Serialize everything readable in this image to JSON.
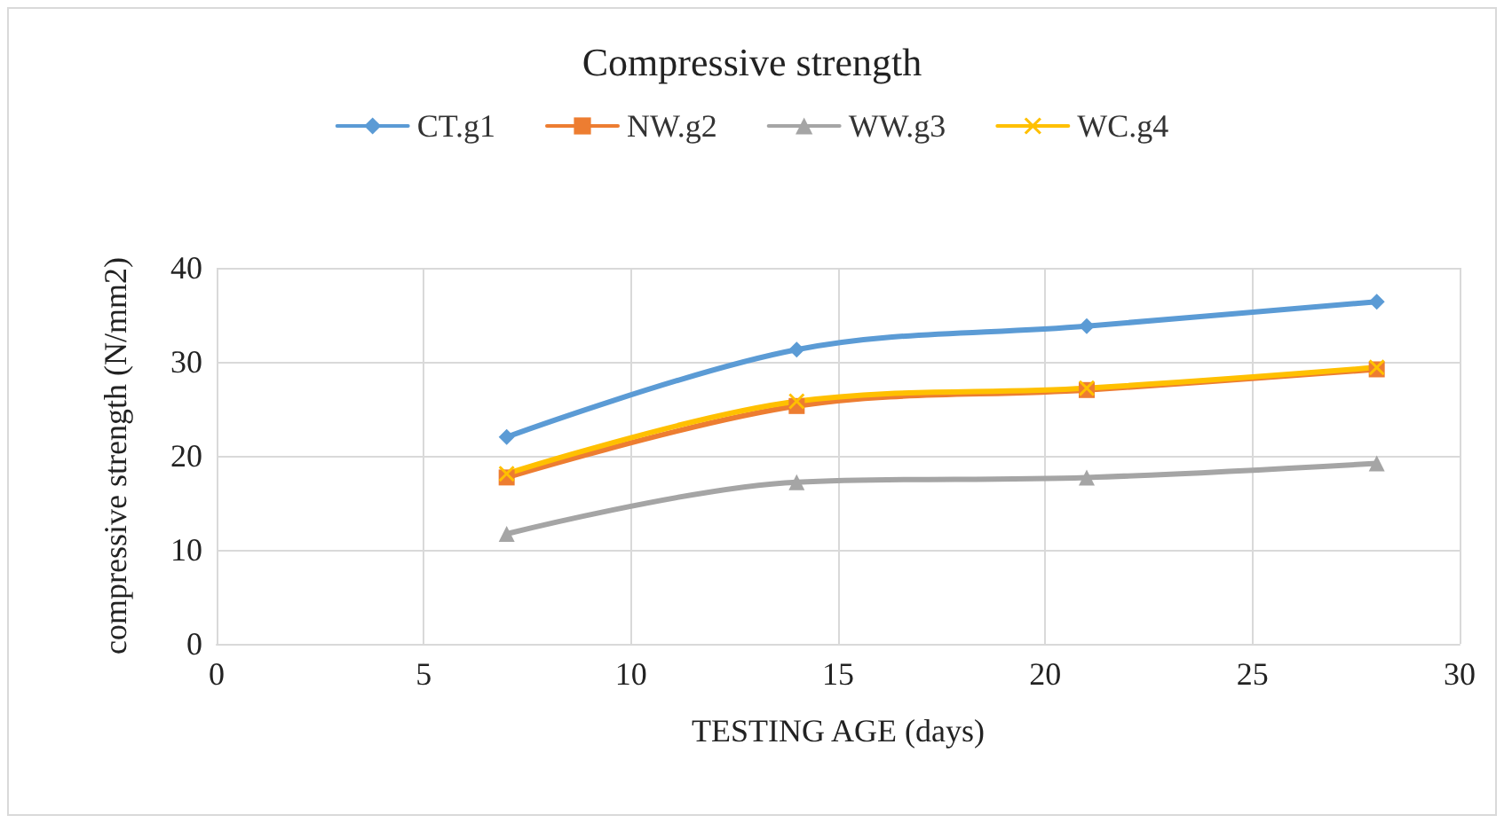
{
  "chart_data": {
    "type": "line",
    "title": "Compressive strength",
    "xlabel": "TESTING AGE (days)",
    "ylabel": "compressive strength (N/mm2)",
    "x": [
      7,
      14,
      21,
      28
    ],
    "series": [
      {
        "name": "CT.g1",
        "color": "#5b9bd5",
        "marker": "diamond",
        "values": [
          22,
          31.3,
          33.8,
          36.4
        ]
      },
      {
        "name": "NW.g2",
        "color": "#ed7d31",
        "marker": "square",
        "values": [
          17.7,
          25.3,
          27,
          29.2
        ]
      },
      {
        "name": "WW.g3",
        "color": "#a5a5a5",
        "marker": "triangle",
        "values": [
          11.7,
          17.2,
          17.7,
          19.2
        ]
      },
      {
        "name": "WC.g4",
        "color": "#ffc000",
        "marker": "cross",
        "values": [
          18.1,
          25.8,
          27.2,
          29.4
        ]
      }
    ],
    "xlim": [
      0,
      30
    ],
    "xticks": [
      0,
      5,
      10,
      15,
      20,
      25,
      30
    ],
    "ylim": [
      0,
      40
    ],
    "yticks": [
      0,
      10,
      20,
      30,
      40
    ],
    "grid": true,
    "legend": "top",
    "line_style": "solid"
  }
}
